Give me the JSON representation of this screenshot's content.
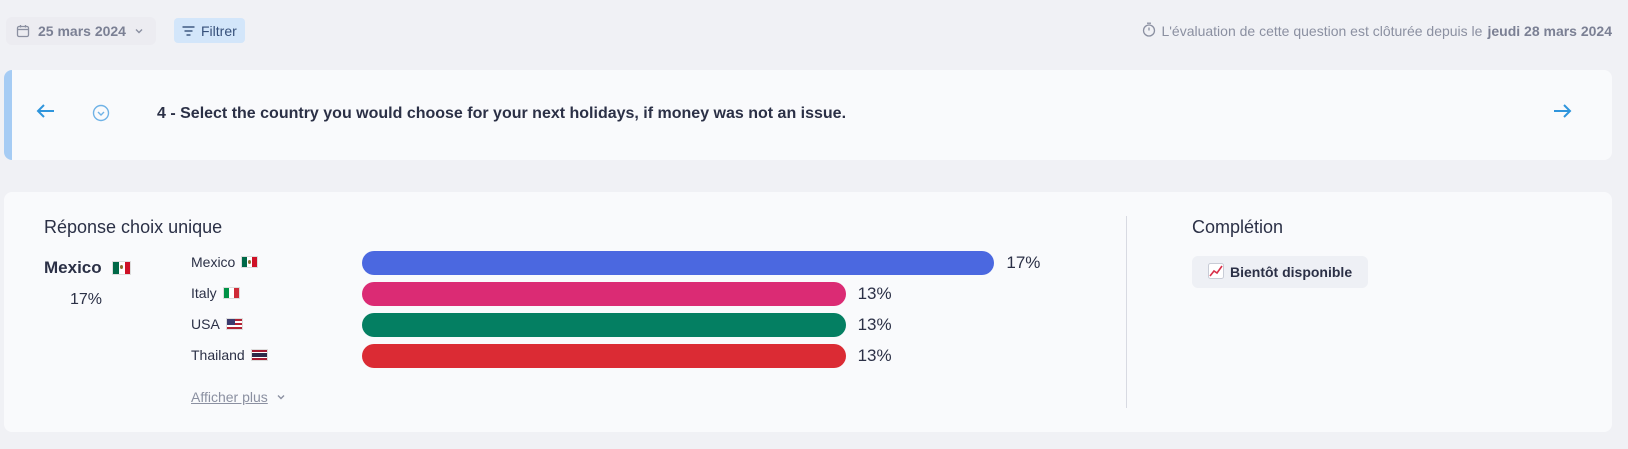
{
  "toolbar": {
    "date_label": "25 mars 2024",
    "filter_label": "Filtrer",
    "closed_prefix": "L'évaluation de cette question est clôturée depuis le",
    "closed_date": "jeudi 28 mars 2024"
  },
  "question": {
    "text": "4 - Select the country you would choose for your next holidays, if money was not an issue."
  },
  "results": {
    "title": "Réponse choix unique",
    "top_answer": "Mexico",
    "top_percent": "17%",
    "show_more": "Afficher plus"
  },
  "completion": {
    "title": "Complétion",
    "badge": "Bientôt disponible"
  },
  "chart_data": {
    "type": "bar",
    "orientation": "horizontal",
    "categories": [
      "Mexico",
      "Italy",
      "USA",
      "Thailand"
    ],
    "values": [
      17,
      13,
      13,
      13
    ],
    "labels": [
      "17%",
      "13%",
      "13%",
      "13%"
    ],
    "colors": [
      "#4b68e0",
      "#db2b74",
      "#047f62",
      "#db2b34"
    ],
    "flags": [
      "mexico-flag",
      "italy-flag",
      "usa-flag",
      "thailand-flag"
    ],
    "unit": "%"
  },
  "colors": {
    "accent": "#a6ccf4",
    "filter_bg": "#d3e6fa",
    "arrow": "#2f95dc"
  }
}
